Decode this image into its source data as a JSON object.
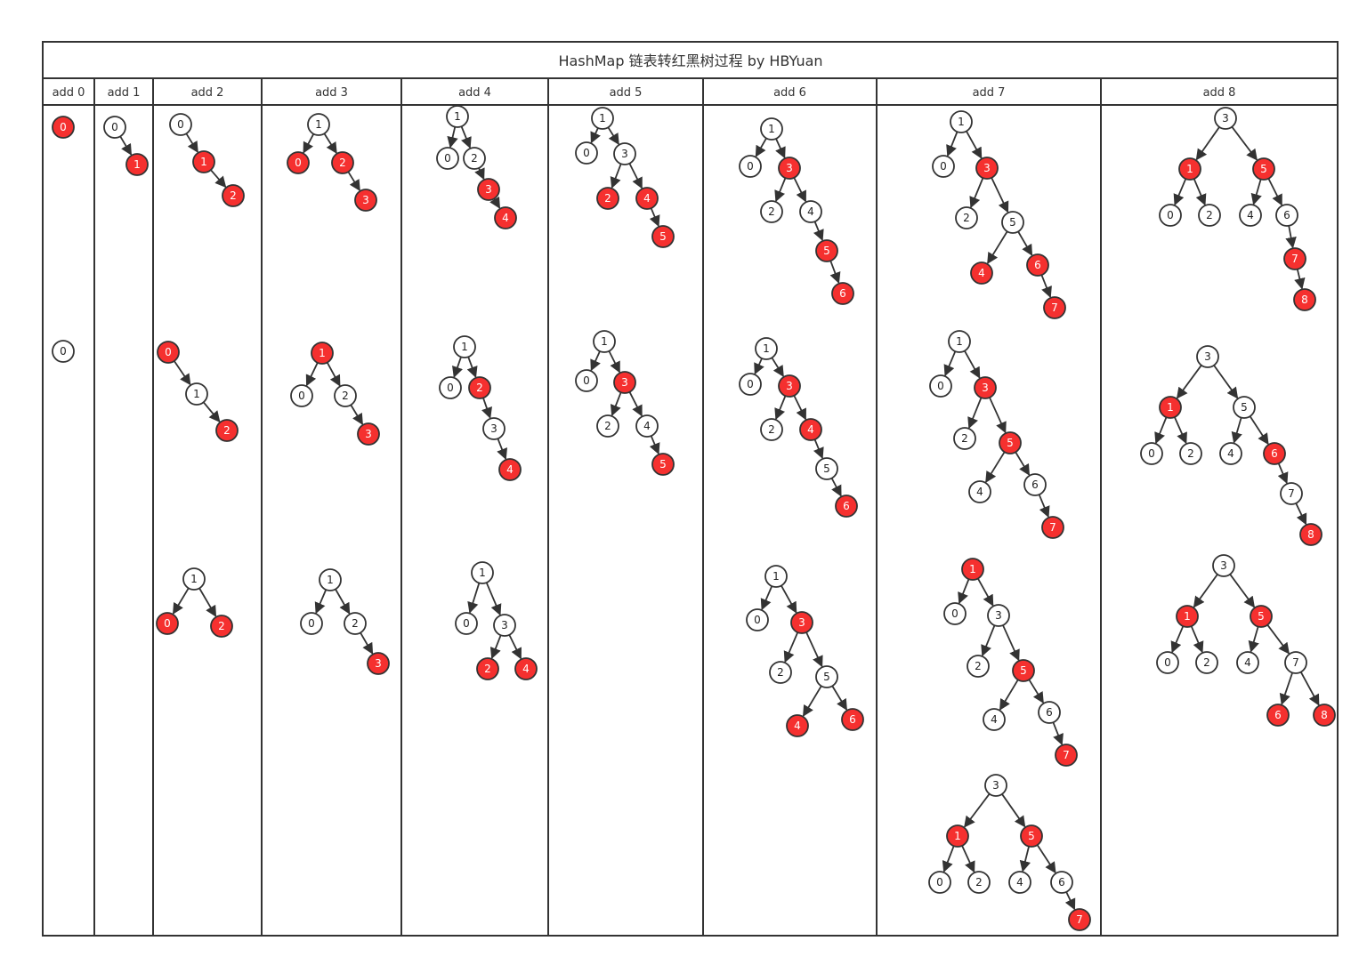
{
  "title": "HashMap 链表转红黑树过程 by HBYuan",
  "colors": {
    "red_node": "#f5302f",
    "black_node": "#ffffff",
    "line": "#333333"
  },
  "columns": [
    "add 0",
    "add 1",
    "add 2",
    "add 3",
    "add 4",
    "add 5",
    "add 6",
    "add 7",
    "add 8"
  ],
  "trees": [
    [
      [
        {
          "key": "0",
          "color": "red"
        }
      ],
      [
        {
          "key": "0",
          "color": "black"
        }
      ]
    ],
    [
      [
        {
          "key": "0",
          "color": "black"
        },
        {
          "key": "1",
          "color": "red"
        }
      ]
    ],
    [
      [
        {
          "key": "0",
          "color": "black"
        },
        {
          "key": "1",
          "color": "red"
        },
        {
          "key": "2",
          "color": "red"
        }
      ],
      [
        {
          "key": "0",
          "color": "red"
        },
        {
          "key": "1",
          "color": "black"
        },
        {
          "key": "2",
          "color": "red"
        }
      ],
      [
        {
          "key": "1",
          "color": "black"
        },
        {
          "key": "0",
          "color": "red"
        },
        {
          "key": "2",
          "color": "red"
        }
      ]
    ],
    [
      [
        {
          "key": "1",
          "color": "black"
        },
        {
          "key": "0",
          "color": "red"
        },
        {
          "key": "2",
          "color": "red"
        },
        {
          "key": "3",
          "color": "red"
        }
      ],
      [
        {
          "key": "1",
          "color": "red"
        },
        {
          "key": "0",
          "color": "black"
        },
        {
          "key": "2",
          "color": "black"
        },
        {
          "key": "3",
          "color": "red"
        }
      ],
      [
        {
          "key": "1",
          "color": "black"
        },
        {
          "key": "0",
          "color": "black"
        },
        {
          "key": "2",
          "color": "black"
        },
        {
          "key": "3",
          "color": "red"
        }
      ]
    ],
    [
      [
        {
          "key": "1",
          "color": "black"
        },
        {
          "key": "0",
          "color": "black"
        },
        {
          "key": "2",
          "color": "black"
        },
        {
          "key": "3",
          "color": "red"
        },
        {
          "key": "4",
          "color": "red"
        }
      ],
      [
        {
          "key": "1",
          "color": "black"
        },
        {
          "key": "0",
          "color": "black"
        },
        {
          "key": "2",
          "color": "red"
        },
        {
          "key": "3",
          "color": "black"
        },
        {
          "key": "4",
          "color": "red"
        }
      ],
      [
        {
          "key": "1",
          "color": "black"
        },
        {
          "key": "0",
          "color": "black"
        },
        {
          "key": "3",
          "color": "black"
        },
        {
          "key": "2",
          "color": "red"
        },
        {
          "key": "4",
          "color": "red"
        }
      ]
    ],
    [
      [
        {
          "key": "1",
          "color": "black"
        },
        {
          "key": "0",
          "color": "black"
        },
        {
          "key": "3",
          "color": "black"
        },
        {
          "key": "2",
          "color": "red"
        },
        {
          "key": "4",
          "color": "red"
        },
        {
          "key": "5",
          "color": "red"
        }
      ],
      [
        {
          "key": "1",
          "color": "black"
        },
        {
          "key": "0",
          "color": "black"
        },
        {
          "key": "3",
          "color": "red"
        },
        {
          "key": "2",
          "color": "black"
        },
        {
          "key": "4",
          "color": "black"
        },
        {
          "key": "5",
          "color": "red"
        }
      ]
    ],
    [
      [
        {
          "key": "1",
          "color": "black"
        },
        {
          "key": "0",
          "color": "black"
        },
        {
          "key": "3",
          "color": "red"
        },
        {
          "key": "2",
          "color": "black"
        },
        {
          "key": "4",
          "color": "black"
        },
        {
          "key": "5",
          "color": "red"
        },
        {
          "key": "6",
          "color": "red"
        }
      ],
      [
        {
          "key": "1",
          "color": "black"
        },
        {
          "key": "0",
          "color": "black"
        },
        {
          "key": "3",
          "color": "red"
        },
        {
          "key": "2",
          "color": "black"
        },
        {
          "key": "4",
          "color": "red"
        },
        {
          "key": "5",
          "color": "black"
        },
        {
          "key": "6",
          "color": "red"
        }
      ],
      [
        {
          "key": "1",
          "color": "black"
        },
        {
          "key": "0",
          "color": "black"
        },
        {
          "key": "3",
          "color": "red"
        },
        {
          "key": "2",
          "color": "black"
        },
        {
          "key": "5",
          "color": "black"
        },
        {
          "key": "4",
          "color": "red"
        },
        {
          "key": "6",
          "color": "red"
        }
      ]
    ],
    [
      [
        {
          "key": "1",
          "color": "black"
        },
        {
          "key": "0",
          "color": "black"
        },
        {
          "key": "3",
          "color": "red"
        },
        {
          "key": "2",
          "color": "black"
        },
        {
          "key": "5",
          "color": "black"
        },
        {
          "key": "4",
          "color": "red"
        },
        {
          "key": "6",
          "color": "red"
        },
        {
          "key": "7",
          "color": "red"
        }
      ],
      [
        {
          "key": "1",
          "color": "black"
        },
        {
          "key": "0",
          "color": "black"
        },
        {
          "key": "3",
          "color": "red"
        },
        {
          "key": "2",
          "color": "black"
        },
        {
          "key": "5",
          "color": "red"
        },
        {
          "key": "4",
          "color": "black"
        },
        {
          "key": "6",
          "color": "black"
        },
        {
          "key": "7",
          "color": "red"
        }
      ],
      [
        {
          "key": "1",
          "color": "red"
        },
        {
          "key": "0",
          "color": "black"
        },
        {
          "key": "3",
          "color": "black"
        },
        {
          "key": "2",
          "color": "black"
        },
        {
          "key": "5",
          "color": "red"
        },
        {
          "key": "4",
          "color": "black"
        },
        {
          "key": "6",
          "color": "black"
        },
        {
          "key": "7",
          "color": "red"
        }
      ],
      [
        {
          "key": "3",
          "color": "black"
        },
        {
          "key": "1",
          "color": "red"
        },
        {
          "key": "5",
          "color": "red"
        },
        {
          "key": "0",
          "color": "black"
        },
        {
          "key": "2",
          "color": "black"
        },
        {
          "key": "4",
          "color": "black"
        },
        {
          "key": "6",
          "color": "black"
        },
        {
          "key": "7",
          "color": "red"
        }
      ]
    ],
    [
      [
        {
          "key": "3",
          "color": "black"
        },
        {
          "key": "1",
          "color": "red"
        },
        {
          "key": "5",
          "color": "red"
        },
        {
          "key": "0",
          "color": "black"
        },
        {
          "key": "2",
          "color": "black"
        },
        {
          "key": "4",
          "color": "black"
        },
        {
          "key": "6",
          "color": "black"
        },
        {
          "key": "7",
          "color": "red"
        },
        {
          "key": "8",
          "color": "red"
        }
      ],
      [
        {
          "key": "3",
          "color": "black"
        },
        {
          "key": "1",
          "color": "red"
        },
        {
          "key": "5",
          "color": "black"
        },
        {
          "key": "0",
          "color": "black"
        },
        {
          "key": "2",
          "color": "black"
        },
        {
          "key": "4",
          "color": "black"
        },
        {
          "key": "6",
          "color": "red"
        },
        {
          "key": "7",
          "color": "black"
        },
        {
          "key": "8",
          "color": "red"
        }
      ],
      [
        {
          "key": "3",
          "color": "black"
        },
        {
          "key": "1",
          "color": "red"
        },
        {
          "key": "5",
          "color": "red"
        },
        {
          "key": "0",
          "color": "black"
        },
        {
          "key": "2",
          "color": "black"
        },
        {
          "key": "4",
          "color": "black"
        },
        {
          "key": "7",
          "color": "black"
        },
        {
          "key": "6",
          "color": "red"
        },
        {
          "key": "8",
          "color": "red"
        }
      ]
    ]
  ]
}
